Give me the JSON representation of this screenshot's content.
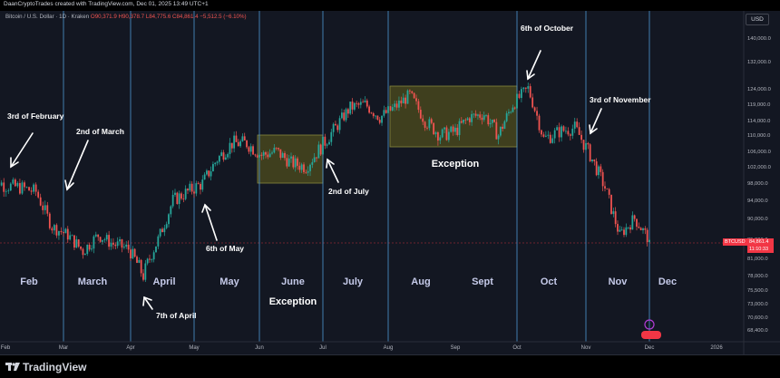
{
  "header": {
    "attribution": "DaanCryptoTrades created with TradingView.com, Dec 01, 2025 13:49 UTC+1"
  },
  "legend": {
    "symbol": "Bitcoin / U.S. Dollar · 1D · Kraken",
    "ohlc": "O90,371.9 H90,378.7 L84,775.6 C84,861.4 −5,512.5 (−6.10%)"
  },
  "currency_button": "USD",
  "price_badge": {
    "ticker": "BTCUSD",
    "price": "84,861.4",
    "countdown": "11:10:33"
  },
  "brand": "TradingView",
  "colors": {
    "background": "#131722",
    "up": "#26a69a",
    "down": "#ef5350",
    "month_line": "#4a90c8",
    "zone_fill": "#4f4d1e",
    "zone_border": "#8a8a3c",
    "price_line": "#f23645"
  },
  "chart_data": {
    "type": "candlestick",
    "title": "Bitcoin / U.S. Dollar · 1D · Kraken",
    "ylim": [
      66000,
      148000
    ],
    "y_ticks": [
      "140,000.0",
      "132,000.0",
      "124,000.0",
      "119,000.0",
      "114,000.0",
      "110,000.0",
      "106,000.0",
      "102,000.0",
      "98,000.0",
      "94,000.0",
      "90,000.0",
      "85,000.0",
      "81,000.0",
      "78,000.0",
      "75,500.0",
      "73,000.0",
      "70,600.0",
      "68,400.0"
    ],
    "x_ticks": [
      "Feb",
      "Mar",
      "Apr",
      "May",
      "Jun",
      "Jul",
      "Aug",
      "Sep",
      "Oct",
      "Nov",
      "Dec",
      "2026"
    ],
    "month_labels": [
      "Feb",
      "March",
      "April",
      "May",
      "June",
      "July",
      "Aug",
      "Sept",
      "Oct",
      "Nov",
      "Dec"
    ],
    "annotations": [
      "3rd of February",
      "2nd of March",
      "7th of April",
      "6th of May",
      "2nd of July",
      "6th of October",
      "3rd of November"
    ],
    "zone_labels": [
      "Exception",
      "Exception"
    ],
    "last_price": 84861.4,
    "weekly_closes": [
      {
        "date": "2025-01-27",
        "value": 100500
      },
      {
        "date": "2025-02-03",
        "value": 97500
      },
      {
        "date": "2025-02-10",
        "value": 97000
      },
      {
        "date": "2025-02-17",
        "value": 96000
      },
      {
        "date": "2025-02-24",
        "value": 88000
      },
      {
        "date": "2025-03-03",
        "value": 86000
      },
      {
        "date": "2025-03-10",
        "value": 82500
      },
      {
        "date": "2025-03-17",
        "value": 86000
      },
      {
        "date": "2025-03-24",
        "value": 84000
      },
      {
        "date": "2025-03-31",
        "value": 83000
      },
      {
        "date": "2025-04-07",
        "value": 78000
      },
      {
        "date": "2025-04-14",
        "value": 85000
      },
      {
        "date": "2025-04-21",
        "value": 94000
      },
      {
        "date": "2025-04-28",
        "value": 96000
      },
      {
        "date": "2025-05-05",
        "value": 98000
      },
      {
        "date": "2025-05-12",
        "value": 104000
      },
      {
        "date": "2025-05-19",
        "value": 108000
      },
      {
        "date": "2025-05-26",
        "value": 108000
      },
      {
        "date": "2025-06-02",
        "value": 105000
      },
      {
        "date": "2025-06-09",
        "value": 106000
      },
      {
        "date": "2025-06-16",
        "value": 103000
      },
      {
        "date": "2025-06-23",
        "value": 102000
      },
      {
        "date": "2025-06-30",
        "value": 107000
      },
      {
        "date": "2025-07-07",
        "value": 112000
      },
      {
        "date": "2025-07-14",
        "value": 118000
      },
      {
        "date": "2025-07-21",
        "value": 119000
      },
      {
        "date": "2025-07-28",
        "value": 115000
      },
      {
        "date": "2025-08-04",
        "value": 118000
      },
      {
        "date": "2025-08-11",
        "value": 122000
      },
      {
        "date": "2025-08-18",
        "value": 114000
      },
      {
        "date": "2025-08-25",
        "value": 110000
      },
      {
        "date": "2025-09-01",
        "value": 111000
      },
      {
        "date": "2025-09-08",
        "value": 115000
      },
      {
        "date": "2025-09-15",
        "value": 116000
      },
      {
        "date": "2025-09-22",
        "value": 110000
      },
      {
        "date": "2025-09-29",
        "value": 119000
      },
      {
        "date": "2025-10-06",
        "value": 124000
      },
      {
        "date": "2025-10-13",
        "value": 109000
      },
      {
        "date": "2025-10-20",
        "value": 111000
      },
      {
        "date": "2025-10-27",
        "value": 112000
      },
      {
        "date": "2025-11-03",
        "value": 105000
      },
      {
        "date": "2025-11-10",
        "value": 97000
      },
      {
        "date": "2025-11-17",
        "value": 86000
      },
      {
        "date": "2025-11-24",
        "value": 90000
      },
      {
        "date": "2025-12-01",
        "value": 84861
      }
    ]
  }
}
